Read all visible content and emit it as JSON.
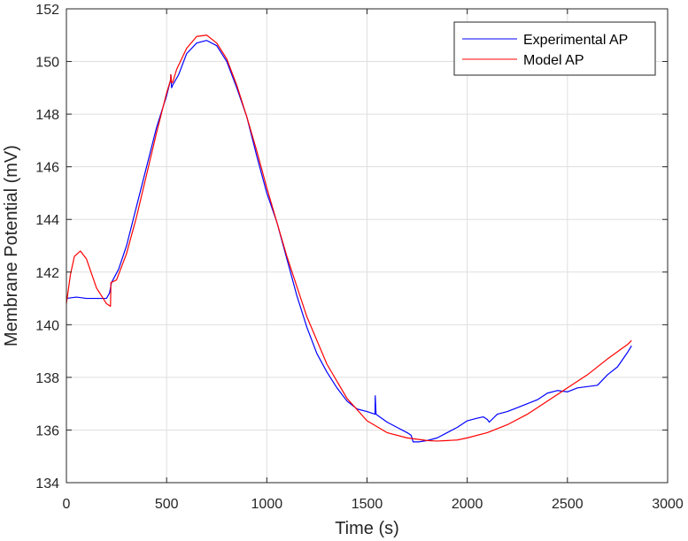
{
  "chart_data": {
    "type": "line",
    "title": "",
    "xlabel": "Time (s)",
    "ylabel": "Membrane Potential (mV)",
    "xlim": [
      0,
      3000
    ],
    "ylim": [
      134,
      152
    ],
    "xticks": [
      0,
      500,
      1000,
      1500,
      2000,
      2500,
      3000
    ],
    "yticks": [
      134,
      136,
      138,
      140,
      142,
      144,
      146,
      148,
      150,
      152
    ],
    "grid": true,
    "legend_position": "top-right",
    "series": [
      {
        "name": "Experimental AP",
        "color": "#0000ff",
        "x": [
          0,
          50,
          100,
          150,
          200,
          215,
          225,
          260,
          300,
          350,
          400,
          450,
          500,
          520,
          521,
          525,
          530,
          560,
          600,
          650,
          700,
          750,
          800,
          850,
          900,
          950,
          1000,
          1050,
          1100,
          1150,
          1200,
          1250,
          1300,
          1350,
          1400,
          1450,
          1500,
          1540,
          1541,
          1545,
          1600,
          1650,
          1700,
          1720,
          1730,
          1760,
          1800,
          1850,
          1900,
          1950,
          2000,
          2050,
          2080,
          2100,
          2110,
          2150,
          2200,
          2250,
          2300,
          2350,
          2400,
          2450,
          2500,
          2550,
          2600,
          2650,
          2700,
          2750,
          2800,
          2820
        ],
        "y": [
          141.0,
          141.05,
          141.0,
          141.0,
          141.0,
          141.2,
          141.6,
          142.1,
          143.0,
          144.5,
          146.0,
          147.5,
          148.7,
          149.3,
          149.5,
          149.0,
          149.1,
          149.5,
          150.3,
          150.7,
          150.8,
          150.6,
          150.0,
          149.0,
          147.9,
          146.4,
          145.0,
          143.9,
          142.5,
          141.1,
          139.9,
          138.9,
          138.2,
          137.6,
          137.1,
          136.8,
          136.7,
          136.6,
          137.3,
          136.6,
          136.3,
          136.1,
          135.9,
          135.8,
          135.55,
          135.55,
          135.6,
          135.7,
          135.9,
          136.1,
          136.35,
          136.45,
          136.5,
          136.4,
          136.3,
          136.6,
          136.7,
          136.85,
          137.0,
          137.15,
          137.4,
          137.5,
          137.45,
          137.6,
          137.65,
          137.7,
          138.1,
          138.4,
          138.95,
          139.2
        ]
      },
      {
        "name": "Model AP",
        "color": "#ff0000",
        "x": [
          0,
          20,
          40,
          70,
          100,
          150,
          200,
          220,
          222,
          250,
          300,
          350,
          400,
          450,
          500,
          520,
          521,
          525,
          530,
          550,
          600,
          650,
          700,
          750,
          800,
          850,
          900,
          950,
          1000,
          1100,
          1200,
          1300,
          1400,
          1500,
          1600,
          1700,
          1800,
          1850,
          1900,
          1950,
          2000,
          2100,
          2200,
          2300,
          2400,
          2500,
          2600,
          2700,
          2800,
          2820
        ],
        "y": [
          140.8,
          141.9,
          142.6,
          142.8,
          142.5,
          141.4,
          140.8,
          140.7,
          141.6,
          141.7,
          142.7,
          144.1,
          145.7,
          147.3,
          148.8,
          149.3,
          149.5,
          149.2,
          149.2,
          149.7,
          150.5,
          150.95,
          151.0,
          150.7,
          150.1,
          149.1,
          147.9,
          146.6,
          145.2,
          142.6,
          140.3,
          138.5,
          137.2,
          136.35,
          135.9,
          135.7,
          135.6,
          135.58,
          135.6,
          135.62,
          135.7,
          135.9,
          136.2,
          136.6,
          137.1,
          137.6,
          138.1,
          138.7,
          139.25,
          139.4
        ]
      }
    ]
  }
}
